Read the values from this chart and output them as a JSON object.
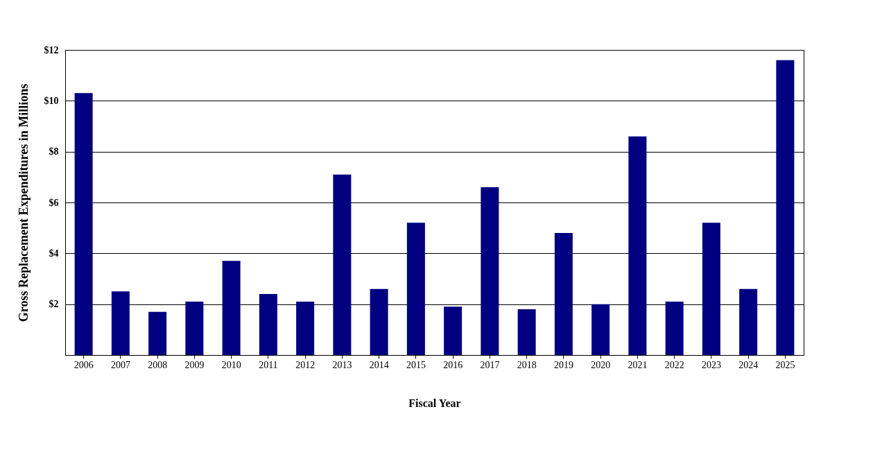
{
  "chart_data": {
    "type": "bar",
    "xlabel": "Fiscal Year",
    "ylabel": "Gross Replacement Expenditures in Millions",
    "categories": [
      "2006",
      "2007",
      "2008",
      "2009",
      "2010",
      "2011",
      "2012",
      "2013",
      "2014",
      "2015",
      "2016",
      "2017",
      "2018",
      "2019",
      "2020",
      "2021",
      "2022",
      "2023",
      "2024",
      "2025"
    ],
    "values": [
      10.3,
      2.5,
      1.7,
      2.1,
      3.7,
      2.4,
      2.1,
      7.1,
      2.6,
      5.2,
      1.9,
      6.6,
      1.8,
      4.8,
      2.0,
      8.6,
      2.1,
      5.2,
      2.6,
      11.6
    ],
    "color": "#000080",
    "ylim": [
      0,
      12
    ],
    "yticks": [
      {
        "value": 2,
        "label": "$2"
      },
      {
        "value": 4,
        "label": "$4"
      },
      {
        "value": 6,
        "label": "$6"
      },
      {
        "value": 8,
        "label": "$8"
      },
      {
        "value": 10,
        "label": "$10"
      },
      {
        "value": 12,
        "label": "$12"
      }
    ],
    "grid": "y"
  }
}
